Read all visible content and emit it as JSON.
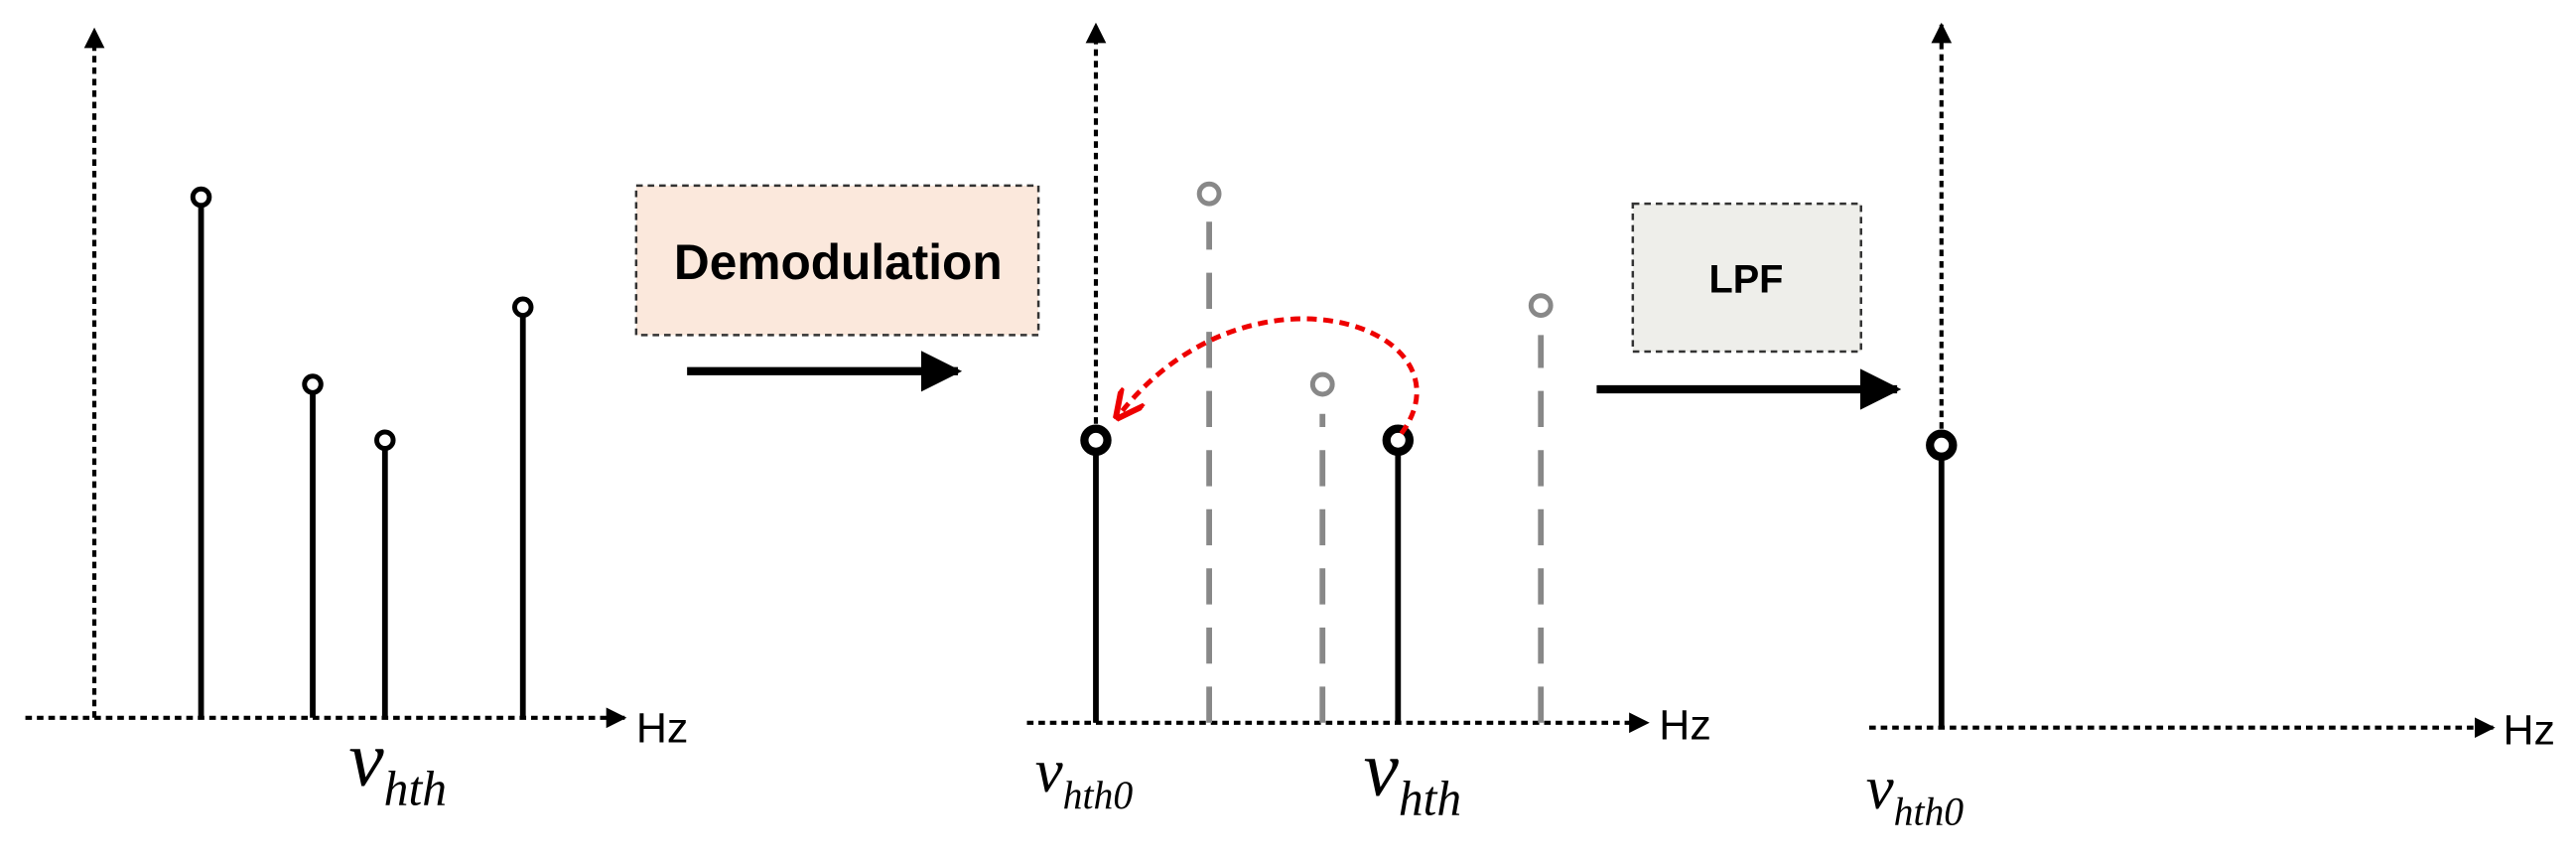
{
  "operations": {
    "demodulation": "Demodulation",
    "lpf": "LPF"
  },
  "panels": [
    {
      "axis_unit": "Hz",
      "labels": [
        {
          "symbol": "v",
          "subscript": "hth"
        }
      ]
    },
    {
      "axis_unit": "Hz",
      "labels": [
        {
          "symbol": "v",
          "subscript": "hth0"
        },
        {
          "symbol": "v",
          "subscript": "hth"
        }
      ]
    },
    {
      "axis_unit": "Hz",
      "labels": [
        {
          "symbol": "v",
          "subscript": "hth0"
        }
      ]
    }
  ]
}
